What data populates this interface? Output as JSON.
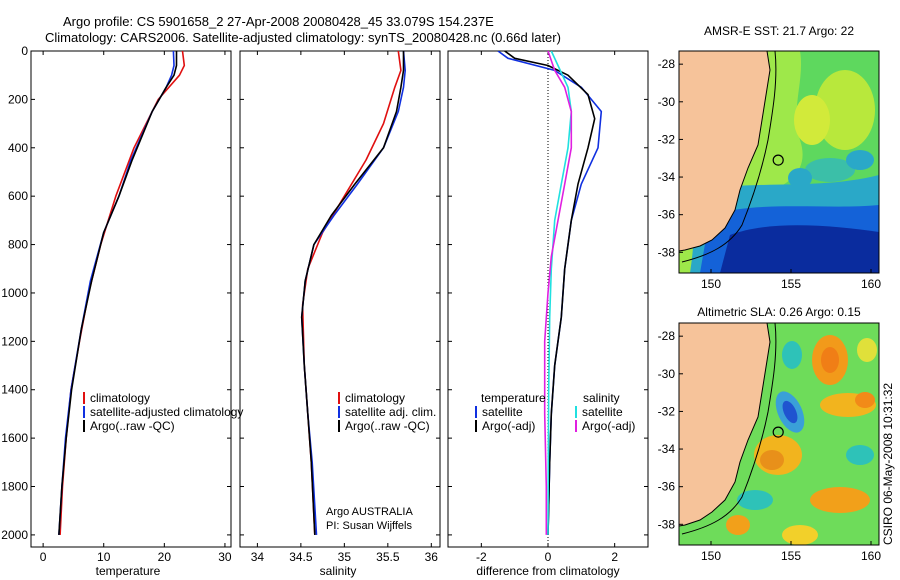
{
  "header": {
    "line1": "Argo profile: CS 5901658_2 27-Apr-2008 20080428_45 33.079S 154.237E",
    "line2": "Climatology: CARS2006. Satellite-adjusted climatology: synTS_20080428.nc (0.66d later)"
  },
  "colors": {
    "red": "#e01010",
    "blue": "#1030e0",
    "black": "#000000",
    "cyan": "#20e0e0",
    "magenta": "#e020e0",
    "land": "#f6c39a"
  },
  "chart_data": [
    {
      "type": "line",
      "xlabel": "temperature",
      "ylabel": "",
      "xlim": [
        -2,
        31
      ],
      "ylim": [
        2050,
        0
      ],
      "xticks": [
        "0",
        "10",
        "20",
        "30"
      ],
      "yticks": [
        "0",
        "200",
        "400",
        "600",
        "800",
        "1000",
        "1200",
        "1400",
        "1600",
        "1800",
        "2000"
      ],
      "legend": [
        "climatology",
        "satellite-adjusted climatology",
        "Argo(..raw -QC)"
      ],
      "series": [
        {
          "name": "climatology",
          "color": "red",
          "points": [
            [
              23,
              0
            ],
            [
              23.3,
              60
            ],
            [
              22.5,
              100
            ],
            [
              19,
              200
            ],
            [
              15,
              400
            ],
            [
              12,
              600
            ],
            [
              9.5,
              800
            ],
            [
              7.5,
              1000
            ],
            [
              6,
              1200
            ],
            [
              4.6,
              1400
            ],
            [
              3.8,
              1600
            ],
            [
              3.2,
              1800
            ],
            [
              2.8,
              2000
            ]
          ]
        },
        {
          "name": "satellite-adjusted climatology",
          "color": "blue",
          "points": [
            [
              21.5,
              0
            ],
            [
              21.6,
              60
            ],
            [
              21.2,
              100
            ],
            [
              20.3,
              150
            ],
            [
              18,
              250
            ],
            [
              14.5,
              450
            ],
            [
              12.5,
              600
            ],
            [
              10,
              750
            ],
            [
              7.8,
              950
            ],
            [
              6.3,
              1150
            ],
            [
              4.6,
              1400
            ],
            [
              3.7,
              1600
            ],
            [
              3.1,
              1800
            ],
            [
              2.6,
              2000
            ]
          ]
        },
        {
          "name": "Argo(..raw -QC)",
          "color": "black",
          "points": [
            [
              22,
              0
            ],
            [
              22,
              60
            ],
            [
              21.6,
              100
            ],
            [
              20.3,
              150
            ],
            [
              18,
              250
            ],
            [
              14.7,
              450
            ],
            [
              12.5,
              600
            ],
            [
              10,
              750
            ],
            [
              8,
              950
            ],
            [
              6.3,
              1150
            ],
            [
              4.7,
              1400
            ],
            [
              3.8,
              1600
            ],
            [
              3.1,
              1800
            ],
            [
              2.6,
              2000
            ]
          ]
        }
      ]
    },
    {
      "type": "line",
      "xlabel": "salinity",
      "ylabel": "",
      "xlim": [
        33.8,
        36.1
      ],
      "ylim": [
        2050,
        0
      ],
      "xticks": [
        "34",
        "34.5",
        "35",
        "35.5",
        "36"
      ],
      "legend": [
        "climatology",
        "satellite adj. clim.",
        "Argo(..raw -QC)"
      ],
      "annotation": [
        "Argo AUSTRALIA",
        "PI: Susan Wijffels"
      ],
      "series": [
        {
          "name": "climatology",
          "color": "red",
          "points": [
            [
              35.62,
              0
            ],
            [
              35.65,
              80
            ],
            [
              35.58,
              150
            ],
            [
              35.45,
              300
            ],
            [
              35.25,
              450
            ],
            [
              35.0,
              600
            ],
            [
              34.75,
              750
            ],
            [
              34.58,
              900
            ],
            [
              34.52,
              1050
            ],
            [
              34.54,
              1300
            ],
            [
              34.58,
              1500
            ],
            [
              34.62,
              1700
            ],
            [
              34.66,
              2000
            ]
          ]
        },
        {
          "name": "satellite adj. clim.",
          "color": "blue",
          "points": [
            [
              35.68,
              0
            ],
            [
              35.7,
              80
            ],
            [
              35.68,
              150
            ],
            [
              35.62,
              250
            ],
            [
              35.45,
              400
            ],
            [
              35.15,
              550
            ],
            [
              34.88,
              680
            ],
            [
              34.65,
              800
            ],
            [
              34.55,
              950
            ],
            [
              34.51,
              1100
            ],
            [
              34.54,
              1300
            ],
            [
              34.58,
              1500
            ],
            [
              34.63,
              1700
            ],
            [
              34.68,
              2000
            ]
          ]
        },
        {
          "name": "Argo(..raw -QC)",
          "color": "black",
          "points": [
            [
              35.68,
              0
            ],
            [
              35.68,
              80
            ],
            [
              35.65,
              150
            ],
            [
              35.6,
              250
            ],
            [
              35.45,
              400
            ],
            [
              35.12,
              550
            ],
            [
              34.85,
              680
            ],
            [
              34.65,
              800
            ],
            [
              34.55,
              950
            ],
            [
              34.51,
              1100
            ],
            [
              34.54,
              1300
            ],
            [
              34.58,
              1500
            ],
            [
              34.62,
              1700
            ],
            [
              34.66,
              2000
            ]
          ]
        }
      ]
    },
    {
      "type": "line",
      "xlabel": "difference from climatology",
      "ylabel": "",
      "xlim": [
        -3,
        3
      ],
      "ylim": [
        2050,
        0
      ],
      "xticks": [
        "-2",
        "0",
        "2"
      ],
      "legend_temperature": [
        "temperature",
        "satellite",
        "Argo(-adj)"
      ],
      "legend_salinity": [
        "salinity",
        "satellite",
        "Argo(-adj)"
      ],
      "series": [
        {
          "name": "temperature satellite",
          "color": "blue",
          "points": [
            [
              -1.5,
              0
            ],
            [
              -1.2,
              30
            ],
            [
              0.2,
              80
            ],
            [
              1.0,
              150
            ],
            [
              1.6,
              250
            ],
            [
              1.5,
              400
            ],
            [
              1.0,
              550
            ],
            [
              0.7,
              700
            ],
            [
              0.5,
              900
            ],
            [
              0.4,
              1100
            ],
            [
              0.2,
              1300
            ],
            [
              0.1,
              1500
            ],
            [
              0.05,
              1700
            ],
            [
              0.0,
              2000
            ]
          ]
        },
        {
          "name": "temperature Argo(-adj)",
          "color": "black",
          "points": [
            [
              -1.3,
              0
            ],
            [
              -1.0,
              30
            ],
            [
              0.0,
              60
            ],
            [
              0.6,
              100
            ],
            [
              1.2,
              180
            ],
            [
              1.4,
              280
            ],
            [
              1.2,
              400
            ],
            [
              0.9,
              550
            ],
            [
              0.7,
              700
            ],
            [
              0.5,
              900
            ],
            [
              0.4,
              1100
            ],
            [
              0.2,
              1300
            ],
            [
              0.1,
              1500
            ],
            [
              0.05,
              1700
            ],
            [
              0.0,
              2000
            ]
          ]
        },
        {
          "name": "salinity satellite",
          "color": "cyan",
          "points": [
            [
              0.1,
              0
            ],
            [
              0.3,
              60
            ],
            [
              0.6,
              150
            ],
            [
              0.7,
              250
            ],
            [
              0.6,
              400
            ],
            [
              0.4,
              550
            ],
            [
              0.2,
              700
            ],
            [
              0.1,
              900
            ],
            [
              0.05,
              1100
            ],
            [
              0.02,
              1400
            ],
            [
              0.01,
              1700
            ],
            [
              0.0,
              2000
            ]
          ]
        },
        {
          "name": "salinity Argo(-adj)",
          "color": "magenta",
          "points": [
            [
              0.0,
              0
            ],
            [
              0.2,
              80
            ],
            [
              0.5,
              150
            ],
            [
              0.7,
              250
            ],
            [
              0.7,
              400
            ],
            [
              0.5,
              550
            ],
            [
              0.3,
              700
            ],
            [
              0.1,
              850
            ],
            [
              0.0,
              1000
            ],
            [
              -0.1,
              1200
            ],
            [
              -0.1,
              1500
            ],
            [
              -0.05,
              1800
            ],
            [
              -0.05,
              2000
            ]
          ]
        }
      ]
    },
    {
      "type": "heatmap",
      "title": "AMSR-E SST: 21.7  Argo: 22",
      "xticks": [
        "150",
        "155",
        "160"
      ],
      "yticks": [
        "-28",
        "-30",
        "-32",
        "-34",
        "-36",
        "-38"
      ],
      "marker": {
        "lon": 154.2,
        "lat": -33.1
      }
    },
    {
      "type": "heatmap",
      "title": "Altimetric SLA: 0.26  Argo: 0.15",
      "xticks": [
        "150",
        "155",
        "160"
      ],
      "yticks": [
        "-28",
        "-30",
        "-32",
        "-34",
        "-36",
        "-38"
      ],
      "marker": {
        "lon": 154.2,
        "lat": -33.1
      }
    }
  ],
  "footer": {
    "stamp": "CSIRO 06-May-2008 10:31:32"
  }
}
